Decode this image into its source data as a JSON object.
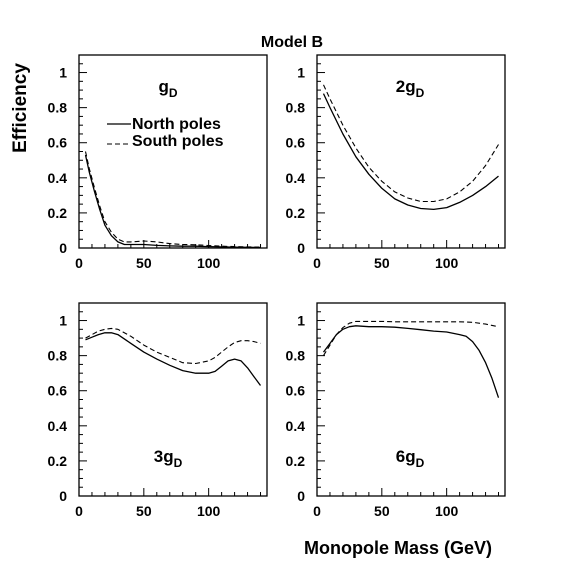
{
  "title": "Model B",
  "ylabel": "Efficiency",
  "xlabel": "Monopole Mass (GeV)",
  "legend": {
    "north": "North poles",
    "south": "South poles"
  },
  "chart_data": [
    {
      "type": "line",
      "panel_label": {
        "prefix": "g",
        "sub": "D"
      },
      "xlim": [
        0,
        145
      ],
      "ylim": [
        0,
        1.1
      ],
      "x_ticks": [
        0,
        50,
        100
      ],
      "y_ticks": [
        0,
        0.2,
        0.4,
        0.6,
        0.8,
        1
      ],
      "series": [
        {
          "name": "North poles",
          "style": "solid",
          "x": [
            5,
            8,
            12,
            16,
            20,
            25,
            30,
            35,
            40,
            50,
            60,
            70,
            80,
            90,
            100,
            110,
            120,
            130,
            140
          ],
          "y": [
            0.53,
            0.43,
            0.32,
            0.22,
            0.13,
            0.07,
            0.035,
            0.02,
            0.02,
            0.02,
            0.015,
            0.012,
            0.01,
            0.01,
            0.008,
            0.006,
            0.005,
            0.004,
            0.003
          ]
        },
        {
          "name": "South poles",
          "style": "dashed",
          "x": [
            5,
            8,
            12,
            16,
            20,
            25,
            30,
            35,
            40,
            50,
            60,
            70,
            80,
            90,
            100,
            110,
            120,
            130,
            140
          ],
          "y": [
            0.55,
            0.45,
            0.34,
            0.24,
            0.15,
            0.09,
            0.05,
            0.035,
            0.035,
            0.04,
            0.035,
            0.025,
            0.02,
            0.018,
            0.014,
            0.01,
            0.008,
            0.006,
            0.005
          ]
        }
      ]
    },
    {
      "type": "line",
      "panel_label": {
        "prefix": "2g",
        "sub": "D"
      },
      "xlim": [
        0,
        145
      ],
      "ylim": [
        0,
        1.1
      ],
      "x_ticks": [
        0,
        50,
        100
      ],
      "y_ticks": [
        0,
        0.2,
        0.4,
        0.6,
        0.8,
        1
      ],
      "series": [
        {
          "name": "North poles",
          "style": "solid",
          "x": [
            5,
            10,
            20,
            30,
            40,
            50,
            60,
            70,
            80,
            90,
            100,
            110,
            120,
            130,
            140
          ],
          "y": [
            0.88,
            0.8,
            0.65,
            0.52,
            0.42,
            0.34,
            0.28,
            0.245,
            0.225,
            0.22,
            0.23,
            0.26,
            0.3,
            0.35,
            0.41
          ]
        },
        {
          "name": "South poles",
          "style": "dashed",
          "x": [
            5,
            10,
            20,
            30,
            40,
            50,
            60,
            70,
            80,
            90,
            100,
            110,
            120,
            130,
            140
          ],
          "y": [
            0.93,
            0.85,
            0.7,
            0.57,
            0.46,
            0.38,
            0.32,
            0.285,
            0.265,
            0.265,
            0.28,
            0.32,
            0.38,
            0.47,
            0.59
          ]
        }
      ]
    },
    {
      "type": "line",
      "panel_label": {
        "prefix": "3g",
        "sub": "D"
      },
      "xlim": [
        0,
        145
      ],
      "ylim": [
        0,
        1.1
      ],
      "x_ticks": [
        0,
        50,
        100
      ],
      "y_ticks": [
        0,
        0.2,
        0.4,
        0.6,
        0.8,
        1
      ],
      "series": [
        {
          "name": "North poles",
          "style": "solid",
          "x": [
            5,
            10,
            15,
            20,
            25,
            30,
            40,
            50,
            60,
            70,
            80,
            90,
            100,
            105,
            110,
            115,
            120,
            125,
            130,
            135,
            140
          ],
          "y": [
            0.89,
            0.905,
            0.92,
            0.93,
            0.93,
            0.92,
            0.87,
            0.82,
            0.78,
            0.745,
            0.715,
            0.7,
            0.7,
            0.71,
            0.74,
            0.77,
            0.78,
            0.77,
            0.73,
            0.68,
            0.63
          ]
        },
        {
          "name": "South poles",
          "style": "dashed",
          "x": [
            5,
            10,
            15,
            20,
            25,
            30,
            40,
            50,
            60,
            70,
            80,
            90,
            100,
            105,
            110,
            115,
            120,
            125,
            130,
            135,
            140
          ],
          "y": [
            0.9,
            0.92,
            0.94,
            0.95,
            0.955,
            0.95,
            0.91,
            0.86,
            0.82,
            0.79,
            0.76,
            0.755,
            0.77,
            0.79,
            0.82,
            0.85,
            0.875,
            0.885,
            0.885,
            0.88,
            0.87
          ]
        }
      ]
    },
    {
      "type": "line",
      "panel_label": {
        "prefix": "6g",
        "sub": "D"
      },
      "xlim": [
        0,
        145
      ],
      "ylim": [
        0,
        1.1
      ],
      "x_ticks": [
        0,
        50,
        100
      ],
      "y_ticks": [
        0,
        0.2,
        0.4,
        0.6,
        0.8,
        1
      ],
      "series": [
        {
          "name": "North poles",
          "style": "solid",
          "x": [
            5,
            10,
            15,
            20,
            25,
            30,
            40,
            50,
            60,
            70,
            80,
            90,
            100,
            110,
            115,
            120,
            125,
            130,
            135,
            140
          ],
          "y": [
            0.82,
            0.87,
            0.92,
            0.95,
            0.965,
            0.97,
            0.965,
            0.965,
            0.962,
            0.955,
            0.948,
            0.94,
            0.935,
            0.92,
            0.91,
            0.88,
            0.83,
            0.76,
            0.67,
            0.56
          ]
        },
        {
          "name": "South poles",
          "style": "dashed",
          "x": [
            5,
            10,
            15,
            20,
            25,
            30,
            40,
            50,
            60,
            70,
            80,
            90,
            100,
            110,
            120,
            130,
            140
          ],
          "y": [
            0.8,
            0.86,
            0.92,
            0.96,
            0.985,
            0.995,
            0.995,
            0.995,
            0.993,
            0.993,
            0.993,
            0.993,
            0.993,
            0.993,
            0.99,
            0.98,
            0.965
          ]
        }
      ]
    }
  ]
}
